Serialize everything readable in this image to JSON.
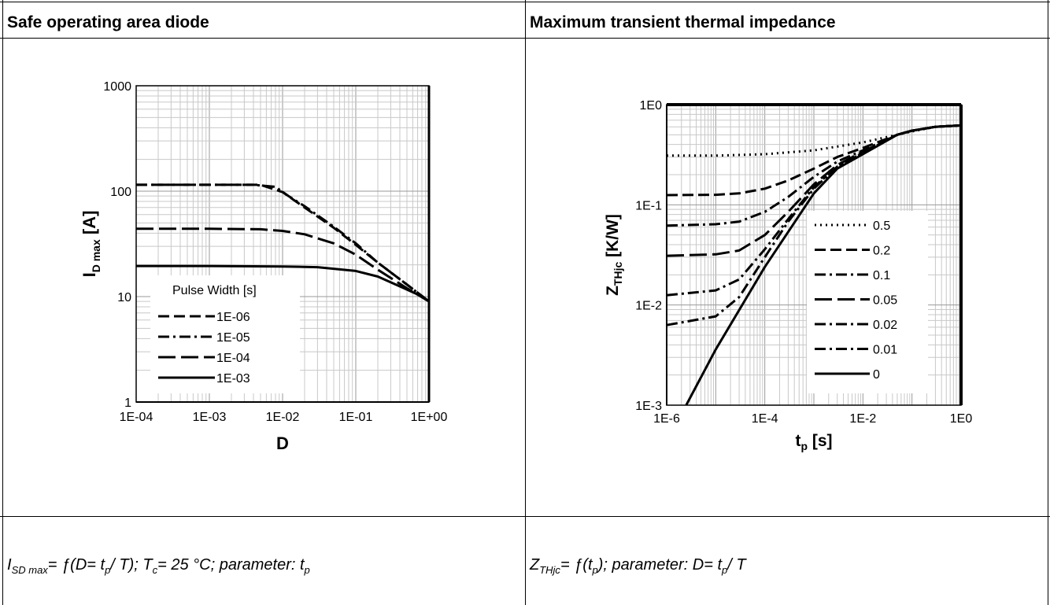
{
  "left": {
    "header": "Safe operating area diode",
    "caption": {
      "p1": "I",
      "p1sub": "SD max",
      "p2": "= ƒ(D= t",
      "p2sub": "p",
      "p3": "/ T); T",
      "p3sub": "c",
      "p4": "= 25 °C; parameter: t",
      "p4sub": "p"
    }
  },
  "right": {
    "header": "Maximum transient thermal impedance",
    "caption": {
      "p1": "Z",
      "p1sub": "THjc",
      "p2": "= ƒ(t",
      "p2sub": "p",
      "p3": "); parameter: D= t",
      "p3sub": "p",
      "p4": "/ T"
    }
  },
  "chart_data": [
    {
      "type": "line",
      "title": "",
      "xlabel": "D",
      "ylabel_main": "I",
      "ylabel_sub": "D max",
      "ylabel_unit": "[A]",
      "x_scale": "log",
      "y_scale": "log",
      "xlim": [
        0.0001,
        1
      ],
      "ylim": [
        1,
        1000
      ],
      "x_ticks": [
        "1E-04",
        "1E-03",
        "1E-02",
        "1E-01",
        "1E+00"
      ],
      "y_ticks": [
        "1",
        "10",
        "100",
        "1000"
      ],
      "grid": true,
      "legend_title": "Pulse Width [s]",
      "legend_position": "bottom-left",
      "series": [
        {
          "name": "1E-06",
          "dash": "dash",
          "x": [
            0.0001,
            0.001,
            0.005,
            0.01,
            0.02,
            0.05,
            0.1,
            0.2,
            0.5,
            1
          ],
          "y": [
            115,
            115,
            115,
            98,
            70,
            45,
            31,
            21,
            13,
            9
          ]
        },
        {
          "name": "1E-05",
          "dash": "dashdot",
          "x": [
            0.0001,
            0.001,
            0.004,
            0.008,
            0.012,
            0.02,
            0.05,
            0.1,
            0.2,
            0.5,
            1
          ],
          "y": [
            115,
            115,
            115,
            110,
            90,
            72,
            46,
            32,
            21,
            13,
            9
          ]
        },
        {
          "name": "1E-04",
          "dash": "longdash",
          "x": [
            0.0001,
            0.001,
            0.005,
            0.01,
            0.02,
            0.05,
            0.1,
            0.2,
            0.5,
            1
          ],
          "y": [
            44,
            44,
            43.5,
            42,
            39,
            32,
            25,
            18,
            12,
            9
          ]
        },
        {
          "name": "1E-03",
          "dash": "solid",
          "x": [
            0.0001,
            0.001,
            0.01,
            0.03,
            0.1,
            0.2,
            0.4,
            0.7,
            1
          ],
          "y": [
            19.5,
            19.5,
            19.3,
            19,
            17.5,
            15.5,
            12.5,
            10.5,
            9
          ]
        }
      ]
    },
    {
      "type": "line",
      "title": "",
      "xlabel_main": "t",
      "xlabel_sub": "p",
      "xlabel_unit": "[s]",
      "ylabel_main": "Z",
      "ylabel_sub": "THjc",
      "ylabel_unit": "[K/W]",
      "x_scale": "log",
      "y_scale": "log",
      "xlim": [
        1e-06,
        1
      ],
      "ylim": [
        0.001,
        1
      ],
      "x_ticks": [
        "1E-6",
        "1E-4",
        "1E-2",
        "1E0"
      ],
      "y_ticks": [
        "1E-3",
        "1E-2",
        "1E-1",
        "1E0"
      ],
      "grid": true,
      "legend_position": "lower-right",
      "series": [
        {
          "name": "0.5",
          "dash": "dot",
          "x": [
            1e-06,
            1e-05,
            0.0001,
            0.001,
            0.01,
            0.1,
            0.3,
            1
          ],
          "y": [
            0.31,
            0.31,
            0.32,
            0.35,
            0.42,
            0.54,
            0.6,
            0.62
          ]
        },
        {
          "name": "0.2",
          "dash": "dash",
          "x": [
            1e-06,
            1e-05,
            3e-05,
            0.0001,
            0.0003,
            0.001,
            0.003,
            0.01,
            0.05,
            0.1,
            0.3,
            1
          ],
          "y": [
            0.125,
            0.126,
            0.13,
            0.145,
            0.175,
            0.23,
            0.3,
            0.37,
            0.5,
            0.55,
            0.6,
            0.62
          ]
        },
        {
          "name": "0.1",
          "dash": "dashdot",
          "x": [
            1e-06,
            1e-05,
            3e-05,
            0.0001,
            0.0003,
            0.001,
            0.003,
            0.01,
            0.05,
            0.1,
            0.3,
            1
          ],
          "y": [
            0.062,
            0.064,
            0.068,
            0.085,
            0.12,
            0.19,
            0.27,
            0.35,
            0.5,
            0.55,
            0.6,
            0.62
          ]
        },
        {
          "name": "0.05",
          "dash": "longdash",
          "x": [
            1e-06,
            1e-05,
            3e-05,
            0.0001,
            0.0003,
            0.001,
            0.003,
            0.01,
            0.05,
            0.1,
            0.3,
            1
          ],
          "y": [
            0.031,
            0.032,
            0.035,
            0.05,
            0.085,
            0.16,
            0.25,
            0.34,
            0.5,
            0.55,
            0.6,
            0.62
          ]
        },
        {
          "name": "0.02",
          "dash": "dashdot",
          "x": [
            1e-06,
            1e-05,
            3e-05,
            0.0001,
            0.0003,
            0.001,
            0.003,
            0.01,
            0.05,
            0.1,
            0.3,
            1
          ],
          "y": [
            0.0125,
            0.014,
            0.018,
            0.036,
            0.072,
            0.15,
            0.24,
            0.33,
            0.5,
            0.55,
            0.6,
            0.62
          ]
        },
        {
          "name": "0.01",
          "dash": "dashdot",
          "x": [
            1e-06,
            1e-05,
            3e-05,
            0.0001,
            0.0003,
            0.001,
            0.003,
            0.01,
            0.05,
            0.1,
            0.3,
            1
          ],
          "y": [
            0.0063,
            0.0077,
            0.012,
            0.03,
            0.068,
            0.145,
            0.24,
            0.33,
            0.5,
            0.55,
            0.6,
            0.62
          ]
        },
        {
          "name": "0",
          "dash": "solid",
          "x": [
            2.5e-06,
            1e-05,
            0.0001,
            0.001,
            0.003,
            0.01,
            0.05,
            0.1,
            0.3,
            1
          ],
          "y": [
            0.001,
            0.0036,
            0.024,
            0.13,
            0.23,
            0.32,
            0.5,
            0.55,
            0.6,
            0.62
          ]
        }
      ]
    }
  ]
}
